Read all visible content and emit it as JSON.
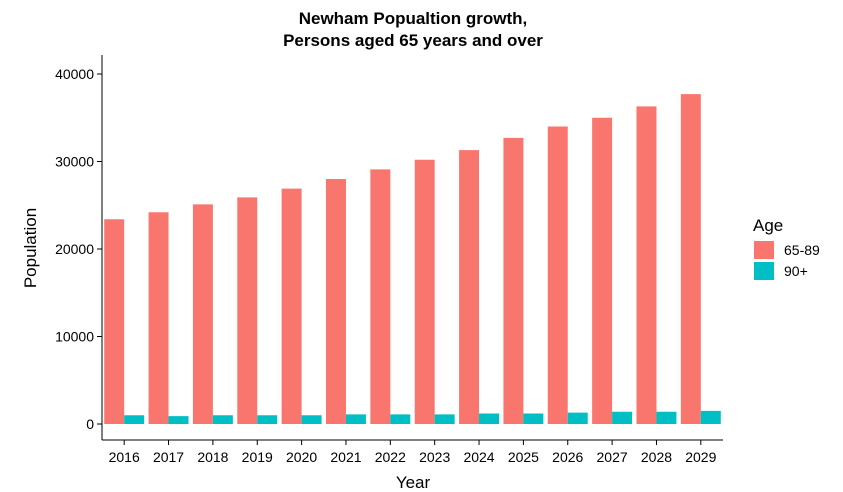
{
  "chart_data": {
    "type": "bar",
    "title": [
      "Newham Popualtion growth,",
      "Persons aged 65 years and over"
    ],
    "xlabel": "Year",
    "ylabel": "Population",
    "categories": [
      "2016",
      "2017",
      "2018",
      "2019",
      "2020",
      "2021",
      "2022",
      "2023",
      "2024",
      "2025",
      "2026",
      "2027",
      "2028",
      "2029"
    ],
    "ylim": [
      0,
      42000
    ],
    "yticks": [
      0,
      10000,
      20000,
      30000,
      40000
    ],
    "grid": false,
    "legend": {
      "title": "Age",
      "position": "right"
    },
    "series": [
      {
        "name": "65-89",
        "color": "#F8766D",
        "values": [
          23400,
          24200,
          25100,
          25900,
          26900,
          28000,
          29100,
          30200,
          31300,
          32700,
          34000,
          35000,
          36300,
          37700
        ]
      },
      {
        "name": "90+",
        "color": "#00BFC4",
        "values": [
          1000,
          900,
          1000,
          1000,
          1000,
          1100,
          1100,
          1100,
          1200,
          1200,
          1300,
          1400,
          1400,
          1500
        ]
      }
    ]
  }
}
